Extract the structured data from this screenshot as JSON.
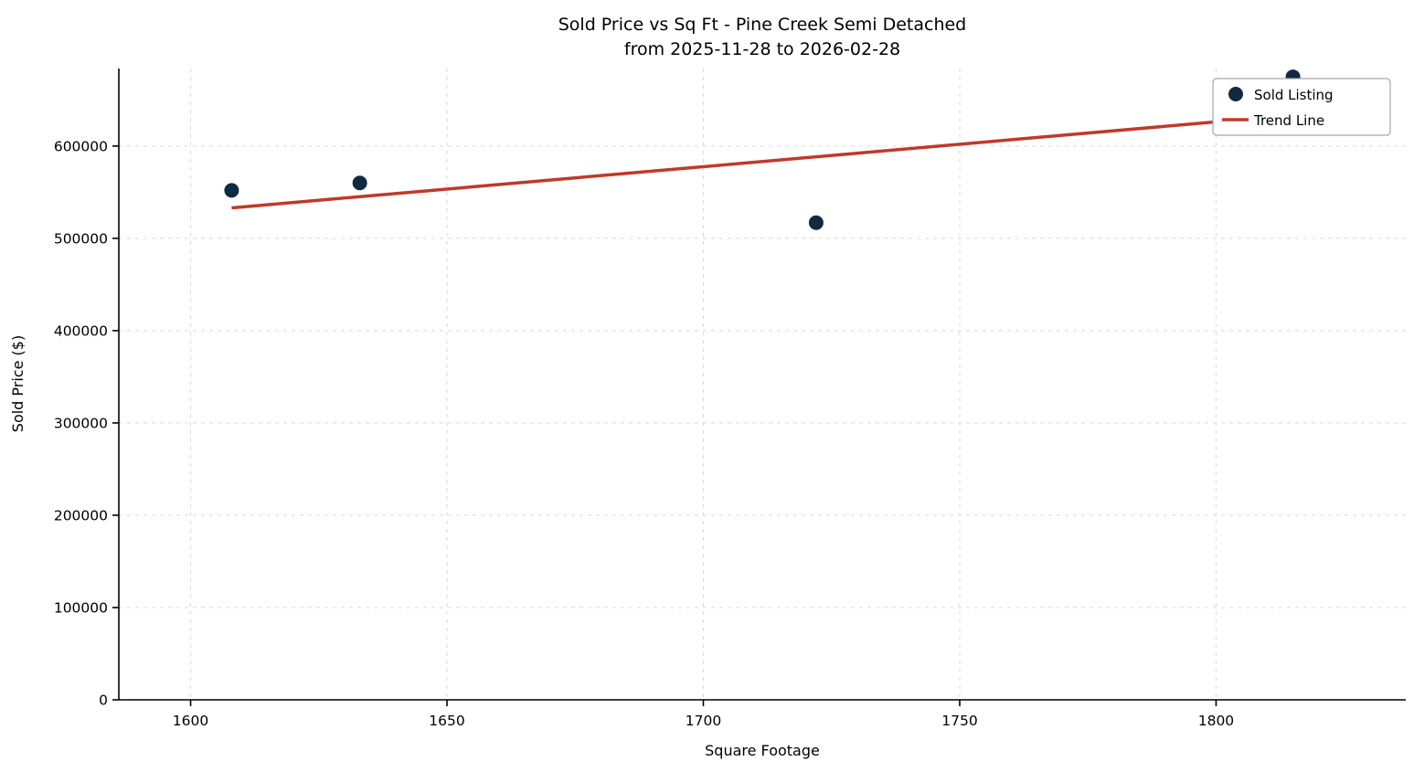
{
  "chart_data": {
    "type": "scatter",
    "title": "Sold Price vs Sq Ft - Pine Creek Semi Detached",
    "subtitle": "from 2025-11-28 to 2026-02-28",
    "xlabel": "Square Footage",
    "ylabel": "Sold Price ($)",
    "xlim": [
      1586,
      1837
    ],
    "ylim": [
      0,
      684000
    ],
    "xticks": [
      1600,
      1650,
      1700,
      1750,
      1800
    ],
    "yticks": [
      0,
      100000,
      200000,
      300000,
      400000,
      500000,
      600000
    ],
    "grid": "dashed",
    "grid_color": "#d9d9d9",
    "legend_position": "upper right",
    "series": [
      {
        "name": "Sold Listing",
        "type": "scatter",
        "color": "#102a43",
        "points": [
          [
            1608,
            552000
          ],
          [
            1633,
            560000
          ],
          [
            1722,
            517000
          ],
          [
            1815,
            675000
          ]
        ]
      },
      {
        "name": "Trend Line",
        "type": "line",
        "color": "#c0392b",
        "points": [
          [
            1608,
            533000
          ],
          [
            1816,
            634000
          ]
        ]
      }
    ]
  }
}
